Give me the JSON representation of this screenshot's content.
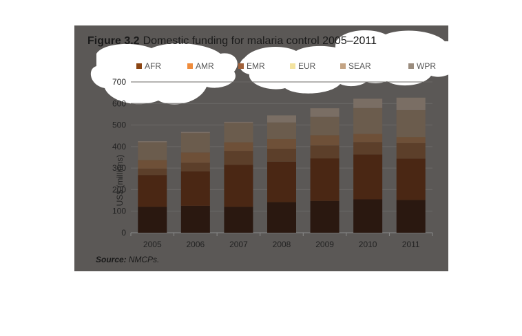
{
  "figure": {
    "label": "Figure 3.2",
    "title": "Domestic funding for malaria control 2005–2011",
    "source_label": "Source:",
    "source_text": "NMCPs."
  },
  "colors": {
    "panel": "#5b5856",
    "text": "#1a1a1a",
    "axis_text": "#222222",
    "AFR": "#8b4513",
    "AMR": "#ef8c3c",
    "EMR": "#a0613a",
    "EUR": "#f3e3a0",
    "SEAR": "#c4a484",
    "WPR": "#9a8c7e"
  },
  "chart_data": {
    "type": "bar",
    "stacked": true,
    "categories": [
      "2005",
      "2006",
      "2007",
      "2008",
      "2009",
      "2010",
      "2011"
    ],
    "ylabel": "US$ (millions)",
    "xlabel": "",
    "ylim": [
      0,
      700
    ],
    "yticks": [
      0,
      100,
      200,
      300,
      400,
      500,
      600,
      700
    ],
    "legend_position": "top",
    "series": [
      {
        "name": "AFR",
        "color": "#2a1810",
        "values": [
          120,
          125,
          120,
          142,
          148,
          155,
          152
        ]
      },
      {
        "name": "AMR",
        "color": "#4a2714",
        "values": [
          148,
          160,
          195,
          188,
          197,
          208,
          192
        ]
      },
      {
        "name": "EMR",
        "color": "#5c3f2a",
        "values": [
          30,
          40,
          65,
          60,
          60,
          58,
          72
        ]
      },
      {
        "name": "EUR",
        "color": "#6e5038",
        "values": [
          40,
          48,
          40,
          45,
          48,
          38,
          28
        ]
      },
      {
        "name": "SEAR",
        "color": "#6b5c4d",
        "values": [
          82,
          90,
          90,
          77,
          85,
          120,
          125
        ]
      },
      {
        "name": "WPR",
        "color": "#7a6e64",
        "values": [
          5,
          5,
          5,
          33,
          40,
          43,
          58
        ]
      }
    ],
    "legend_colors": [
      "#8b4513",
      "#ef8c3c",
      "#a0613a",
      "#f3e3a0",
      "#c4a484",
      "#9a8c7e"
    ]
  }
}
